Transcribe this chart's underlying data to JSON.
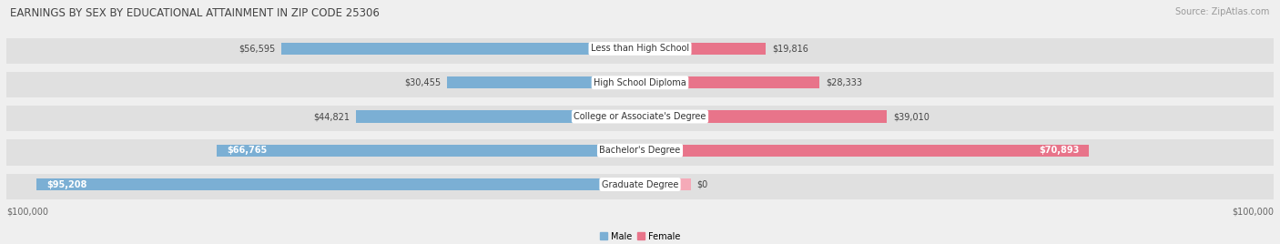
{
  "title": "EARNINGS BY SEX BY EDUCATIONAL ATTAINMENT IN ZIP CODE 25306",
  "source": "Source: ZipAtlas.com",
  "categories": [
    "Less than High School",
    "High School Diploma",
    "College or Associate's Degree",
    "Bachelor's Degree",
    "Graduate Degree"
  ],
  "male_values": [
    56595,
    30455,
    44821,
    66765,
    95208
  ],
  "female_values": [
    19816,
    28333,
    39010,
    70893,
    0
  ],
  "female_stub": 8000,
  "max_value": 100000,
  "male_color": "#7bafd4",
  "female_color_full": "#e8748a",
  "female_color_stub": "#f5aab8",
  "bg_color": "#efefef",
  "row_bg_color": "#e0e0e0",
  "title_fontsize": 8.5,
  "source_fontsize": 7,
  "bar_label_fontsize": 7,
  "category_fontsize": 7,
  "axis_fontsize": 7
}
